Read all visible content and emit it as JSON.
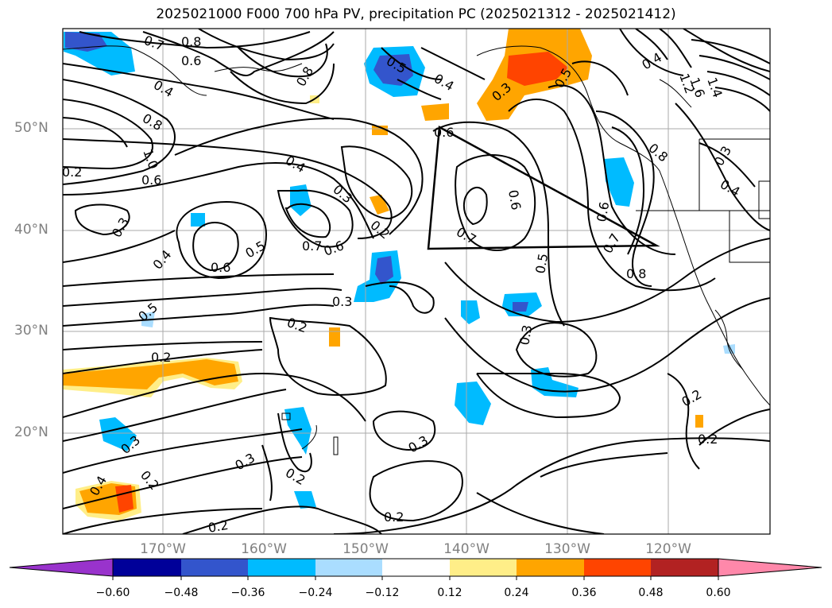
{
  "title": "2025021000 F000 700 hPa PV, precipitation PC (2025021312 - 2025021412)",
  "latitude_labels": [
    "50°N",
    "40°N",
    "30°N",
    "20°N"
  ],
  "longitude_labels": [
    "170°W",
    "160°W",
    "150°W",
    "140°W",
    "130°W",
    "120°W"
  ],
  "colorbar": {
    "ticks": [
      "−0.60",
      "−0.48",
      "−0.36",
      "−0.24",
      "−0.12",
      "0.12",
      "0.24",
      "0.36",
      "0.48",
      "0.60"
    ],
    "colors": [
      "#9933cc",
      "#000099",
      "#3355cc",
      "#00bbff",
      "#aaddff",
      "#ffffff",
      "#ffee88",
      "#ffa500",
      "#ff4400",
      "#b22222",
      "#ff88aa"
    ]
  },
  "contour_labels": {
    "c1": "0.7",
    "c2": "0.8",
    "c3": "0.6",
    "c4": "0.4",
    "c5": "0.8",
    "c6": "1.0",
    "c7": "0.6",
    "c8": "0.5",
    "c9": "0.4",
    "c10": "0.8",
    "c11": "0.3",
    "c12": "0.4",
    "c13": "0.3",
    "c14": "0.2",
    "c15": "0.3",
    "c16": "0.6",
    "c17": "0.4",
    "c18": "0.7",
    "c19": "0.6",
    "c20": "0.5",
    "c21": "0.3",
    "c22": "0.5",
    "c23": "0.6",
    "c24": "0.7",
    "c25": "0.5",
    "c26": "0.8",
    "c27": "0.7",
    "c28": "0.6",
    "c29": "0.4",
    "c30": "0.3",
    "c31": "0.2",
    "c32": "0.3",
    "c33": "0.2",
    "c34": "0.2",
    "c35": "0.3",
    "c36": "0.2",
    "c37": "0.2",
    "c38": "0.3",
    "c39": "0.2",
    "c40": "0.4",
    "c41": "0.2",
    "c42": "0.3",
    "c43": "0.2",
    "c44": "0.8",
    "c45": "0.6",
    "c46": "0.4",
    "c47": "1.2",
    "c48": "1.4",
    "c49": "1.6",
    "c50": "0.5",
    "c51": "0.2"
  }
}
